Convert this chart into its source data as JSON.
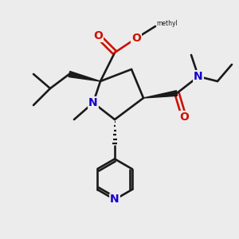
{
  "bg_color": "#ececec",
  "bond_color": "#1a1a1a",
  "N_color": "#1400cc",
  "O_color": "#cc1100",
  "lw": 1.9,
  "figsize": [
    3.0,
    3.0
  ],
  "dpi": 100,
  "xlim": [
    -1,
    9
  ],
  "ylim": [
    -1,
    9
  ]
}
